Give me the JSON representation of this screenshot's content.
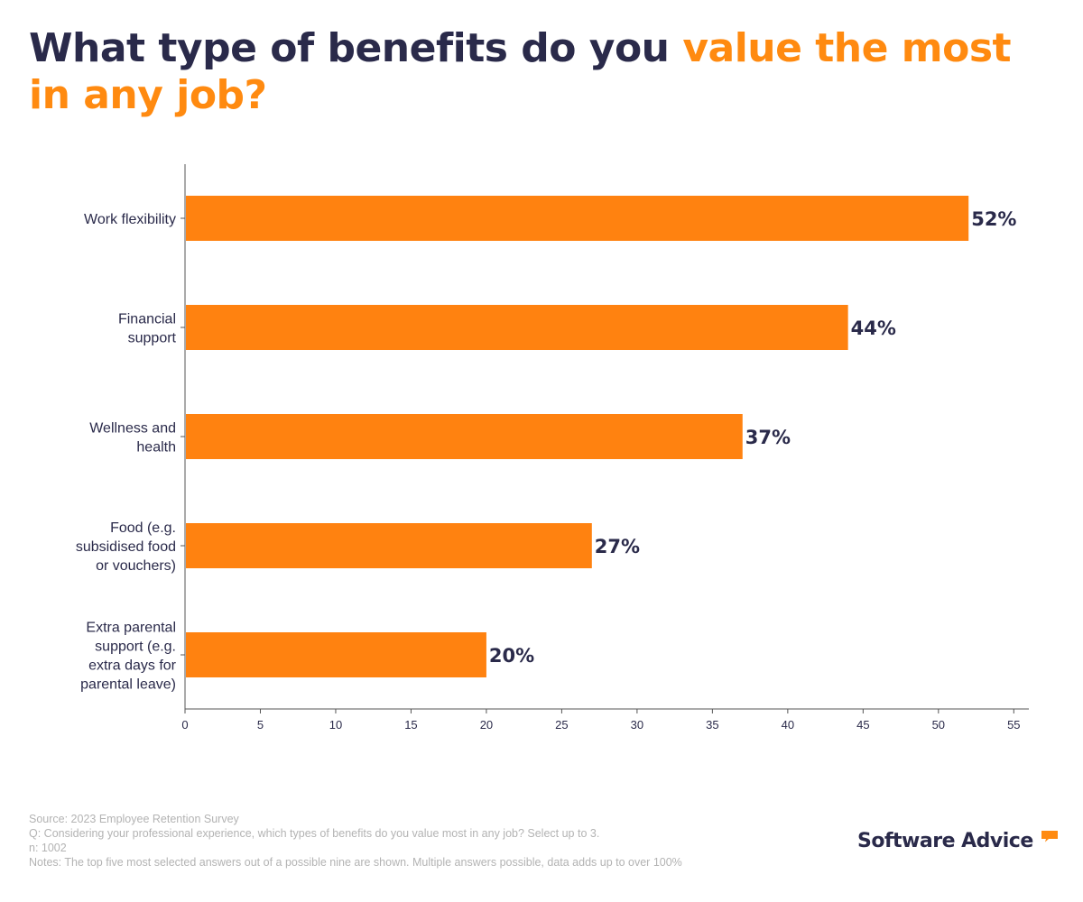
{
  "title": {
    "part1": "What type of benefits do you ",
    "part2": "value the most in any job?"
  },
  "colors": {
    "bar": "#ff8210",
    "title_dark": "#2a2a4a",
    "accent": "#ff8a10",
    "label": "#2a2a4a",
    "axis": "#555555"
  },
  "chart_data": {
    "type": "bar",
    "orientation": "horizontal",
    "categories": [
      "Work flexibility",
      "Financial support",
      "Wellness and health",
      "Food (e.g. subsidised food or vouchers)",
      "Extra parental support (e.g. extra days for parental leave)"
    ],
    "category_lines": [
      [
        "Work flexibility"
      ],
      [
        "Financial",
        "support"
      ],
      [
        "Wellness and",
        "health"
      ],
      [
        "Food (e.g.",
        "subsidised food",
        "or vouchers)"
      ],
      [
        "Extra parental",
        "support (e.g.",
        "extra days for",
        "parental leave)"
      ]
    ],
    "values": [
      52,
      44,
      37,
      27,
      20
    ],
    "value_labels": [
      "52%",
      "44%",
      "37%",
      "27%",
      "20%"
    ],
    "xlim": [
      0,
      56
    ],
    "xticks": [
      0,
      5,
      10,
      15,
      20,
      25,
      30,
      35,
      40,
      45,
      50,
      55
    ],
    "xtick_labels": [
      "0",
      "5",
      "10",
      "15",
      "20",
      "25",
      "30",
      "35",
      "40",
      "45",
      "50",
      "55"
    ],
    "title": "What type of benefits do you value the most in any job?",
    "xlabel": "",
    "ylabel": "",
    "grid": false
  },
  "footer": {
    "source": "Source: 2023 Employee Retention Survey",
    "question": "Q: Considering your professional experience, which types of benefits do you value most in any job? Select up to 3.",
    "n": "n: 1002",
    "notes": "Notes: The top five most selected answers out of a possible nine are shown. Multiple answers possible, data adds up to over 100%"
  },
  "brand": {
    "name": "Software Advice",
    "icon": "speech-bubble-icon"
  }
}
